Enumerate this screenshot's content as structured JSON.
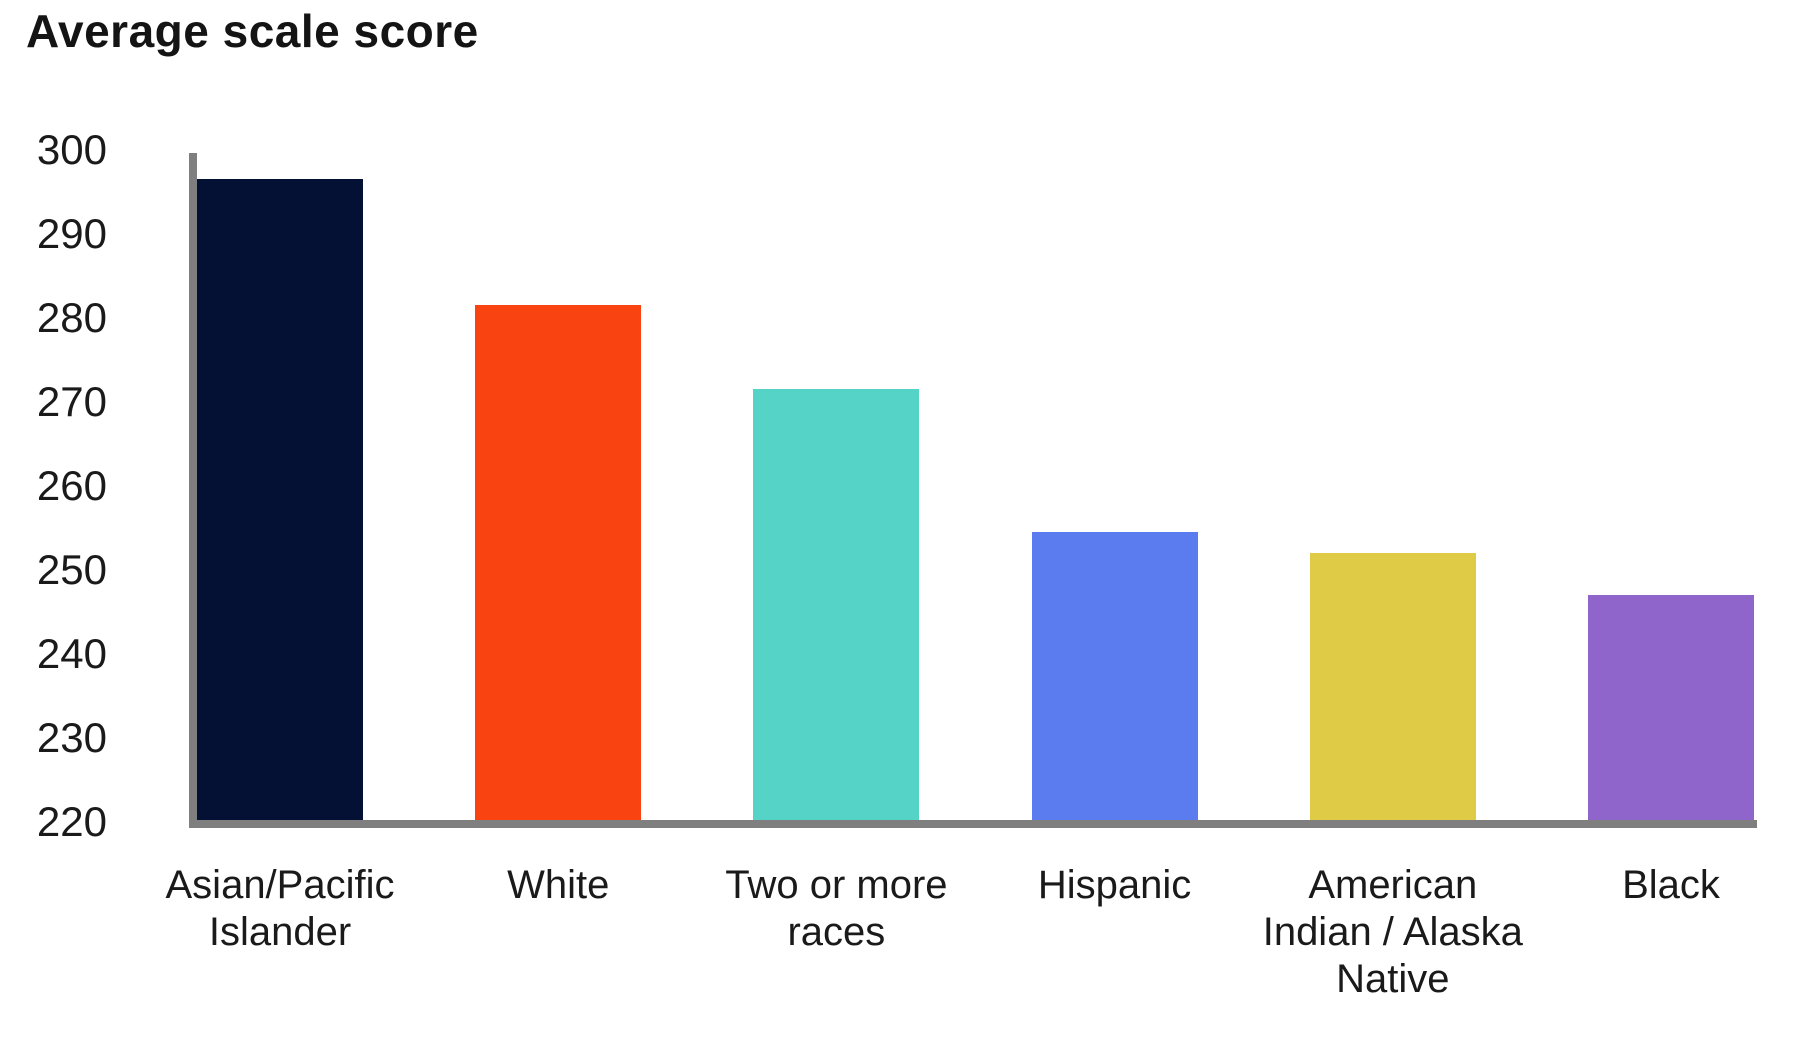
{
  "page": {
    "background": "#ffffff"
  },
  "chart_data": {
    "type": "bar",
    "title": "Average scale score",
    "categories": [
      "Asian/Pacific Islander",
      "White",
      "Two or more races",
      "Hispanic",
      "American Indian / Alaska Native",
      "Black"
    ],
    "category_label_lines": [
      "Asian/Pacific\nIslander",
      "White",
      "Two or more\nraces",
      "Hispanic",
      "American\nIndian / Alaska\nNative",
      "Black"
    ],
    "values": [
      296.5,
      281.5,
      271.5,
      254.5,
      252,
      247
    ],
    "bar_colors": [
      "#041135",
      "#F94411",
      "#56D3C7",
      "#5A7CEF",
      "#DFCB45",
      "#8F65CB"
    ],
    "xlabel": "",
    "ylabel": "",
    "ylim": [
      220,
      300
    ],
    "yticks": [
      300,
      290,
      280,
      270,
      260,
      250,
      240,
      230,
      220
    ],
    "grid": false,
    "legend": "none",
    "axis_color": "#7f7f7f",
    "text_color": "#1a1a1a"
  }
}
